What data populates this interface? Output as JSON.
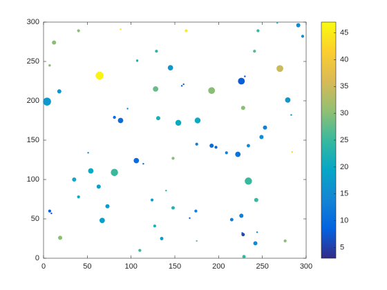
{
  "chart_data": {
    "type": "scatter",
    "x": [
      291,
      296,
      267,
      245,
      163,
      88,
      40,
      12,
      7,
      241,
      270,
      129,
      64,
      107,
      145,
      18,
      4,
      128,
      192,
      226,
      230,
      158,
      160,
      279,
      228,
      96,
      81,
      88,
      131,
      154,
      176,
      253,
      249,
      283,
      175,
      192,
      197,
      209,
      222,
      234,
      284,
      51,
      148,
      106,
      114,
      54,
      81,
      234,
      35,
      63,
      140,
      40,
      243,
      124,
      73,
      148,
      7,
      9,
      174,
      226,
      67,
      167,
      215,
      127,
      227,
      228,
      244,
      135,
      19,
      242,
      276,
      175,
      110,
      229
    ],
    "y": [
      296,
      282,
      299,
      289,
      289,
      291,
      289,
      274,
      245,
      263,
      241,
      263,
      232,
      251,
      242,
      212,
      199,
      215,
      213,
      225,
      231,
      219,
      221,
      201,
      191,
      190,
      179,
      175,
      178,
      172,
      175,
      166,
      154,
      182,
      145,
      143,
      141,
      134,
      132,
      143,
      135,
      134,
      127,
      124,
      120,
      111,
      109,
      98,
      100,
      91,
      86,
      78,
      74,
      74,
      66,
      64,
      60,
      57,
      60,
      54,
      48,
      51,
      49,
      41,
      32,
      30,
      33,
      25,
      26,
      19,
      22,
      22,
      10,
      2
    ],
    "sizes": [
      30,
      15,
      5,
      15,
      15,
      5,
      15,
      30,
      10,
      15,
      80,
      15,
      110,
      10,
      50,
      30,
      110,
      50,
      80,
      80,
      5,
      5,
      5,
      50,
      30,
      5,
      15,
      50,
      30,
      60,
      60,
      30,
      30,
      5,
      15,
      30,
      15,
      15,
      50,
      20,
      5,
      5,
      15,
      50,
      5,
      50,
      90,
      90,
      30,
      30,
      5,
      15,
      30,
      15,
      30,
      20,
      15,
      5,
      15,
      30,
      50,
      5,
      20,
      15,
      5,
      20,
      5,
      20,
      30,
      30,
      15,
      5,
      15,
      20
    ],
    "colors": [
      15,
      15,
      22,
      24,
      45,
      45,
      30,
      30,
      30,
      27,
      35,
      24,
      46,
      22,
      17,
      17,
      17,
      28,
      30,
      8,
      8,
      8,
      8,
      17,
      30,
      15,
      10,
      10,
      22,
      20,
      20,
      13,
      15,
      17,
      13,
      10,
      10,
      13,
      11,
      15,
      43,
      17,
      30,
      10,
      10,
      20,
      25,
      25,
      20,
      18,
      24,
      20,
      25,
      18,
      18,
      23,
      8,
      8,
      13,
      13,
      18,
      10,
      13,
      22,
      6,
      6,
      15,
      18,
      30,
      15,
      30,
      28,
      25,
      24
    ],
    "xlim": [
      0,
      300
    ],
    "xticks": [
      0,
      50,
      100,
      150,
      200,
      250,
      300
    ],
    "ylim": [
      0,
      300
    ],
    "yticks": [
      0,
      50,
      100,
      150,
      200,
      250,
      300
    ],
    "clim": [
      3,
      47
    ],
    "cticks": [
      5,
      10,
      15,
      20,
      25,
      30,
      35,
      40,
      45
    ],
    "colormap": [
      "#352a87",
      "#0363e1",
      "#1485d4",
      "#06a7c6",
      "#38b99e",
      "#92bf73",
      "#d9ba56",
      "#fcce2e",
      "#f9fb0e"
    ]
  }
}
